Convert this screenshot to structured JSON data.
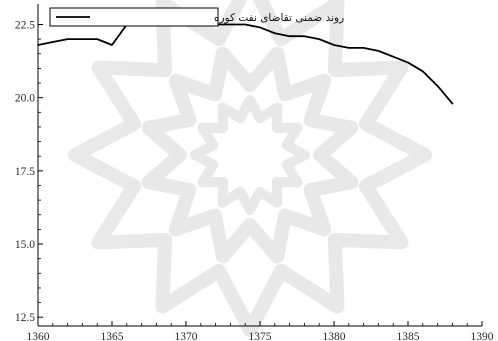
{
  "chart_data": {
    "type": "line",
    "title": "",
    "xlabel": "",
    "ylabel": "",
    "xlim": [
      1360,
      1390
    ],
    "ylim": [
      12.2,
      23.2
    ],
    "xticks": [
      1360,
      1365,
      1370,
      1375,
      1380,
      1385,
      1390
    ],
    "yticks": [
      12.5,
      15.0,
      17.5,
      20.0,
      22.5
    ],
    "xtick_labels": [
      "1360",
      "1365",
      "1370",
      "1375",
      "1380",
      "1385",
      "1390"
    ],
    "ytick_labels": [
      "12.5",
      "15.0",
      "17.5",
      "20.0",
      "22.5"
    ],
    "grid": false,
    "legend_position": "top-left",
    "line_color": "#000000",
    "series": [
      {
        "name": "روند ضمنی تقاضای نفت کوره",
        "x": [
          1360,
          1361,
          1362,
          1363,
          1364,
          1365,
          1366,
          1367,
          1368,
          1369,
          1370,
          1371,
          1372,
          1373,
          1374,
          1375,
          1376,
          1377,
          1378,
          1379,
          1380,
          1381,
          1382,
          1383,
          1384,
          1385,
          1386,
          1387,
          1388
        ],
        "values": [
          21.8,
          21.9,
          22.0,
          22.0,
          22.0,
          21.8,
          22.5,
          22.7,
          22.7,
          22.8,
          22.7,
          22.6,
          22.5,
          22.5,
          22.5,
          22.4,
          22.2,
          22.1,
          22.1,
          22.0,
          21.8,
          21.7,
          21.7,
          21.6,
          21.4,
          21.2,
          20.9,
          20.4,
          19.8
        ]
      }
    ]
  }
}
